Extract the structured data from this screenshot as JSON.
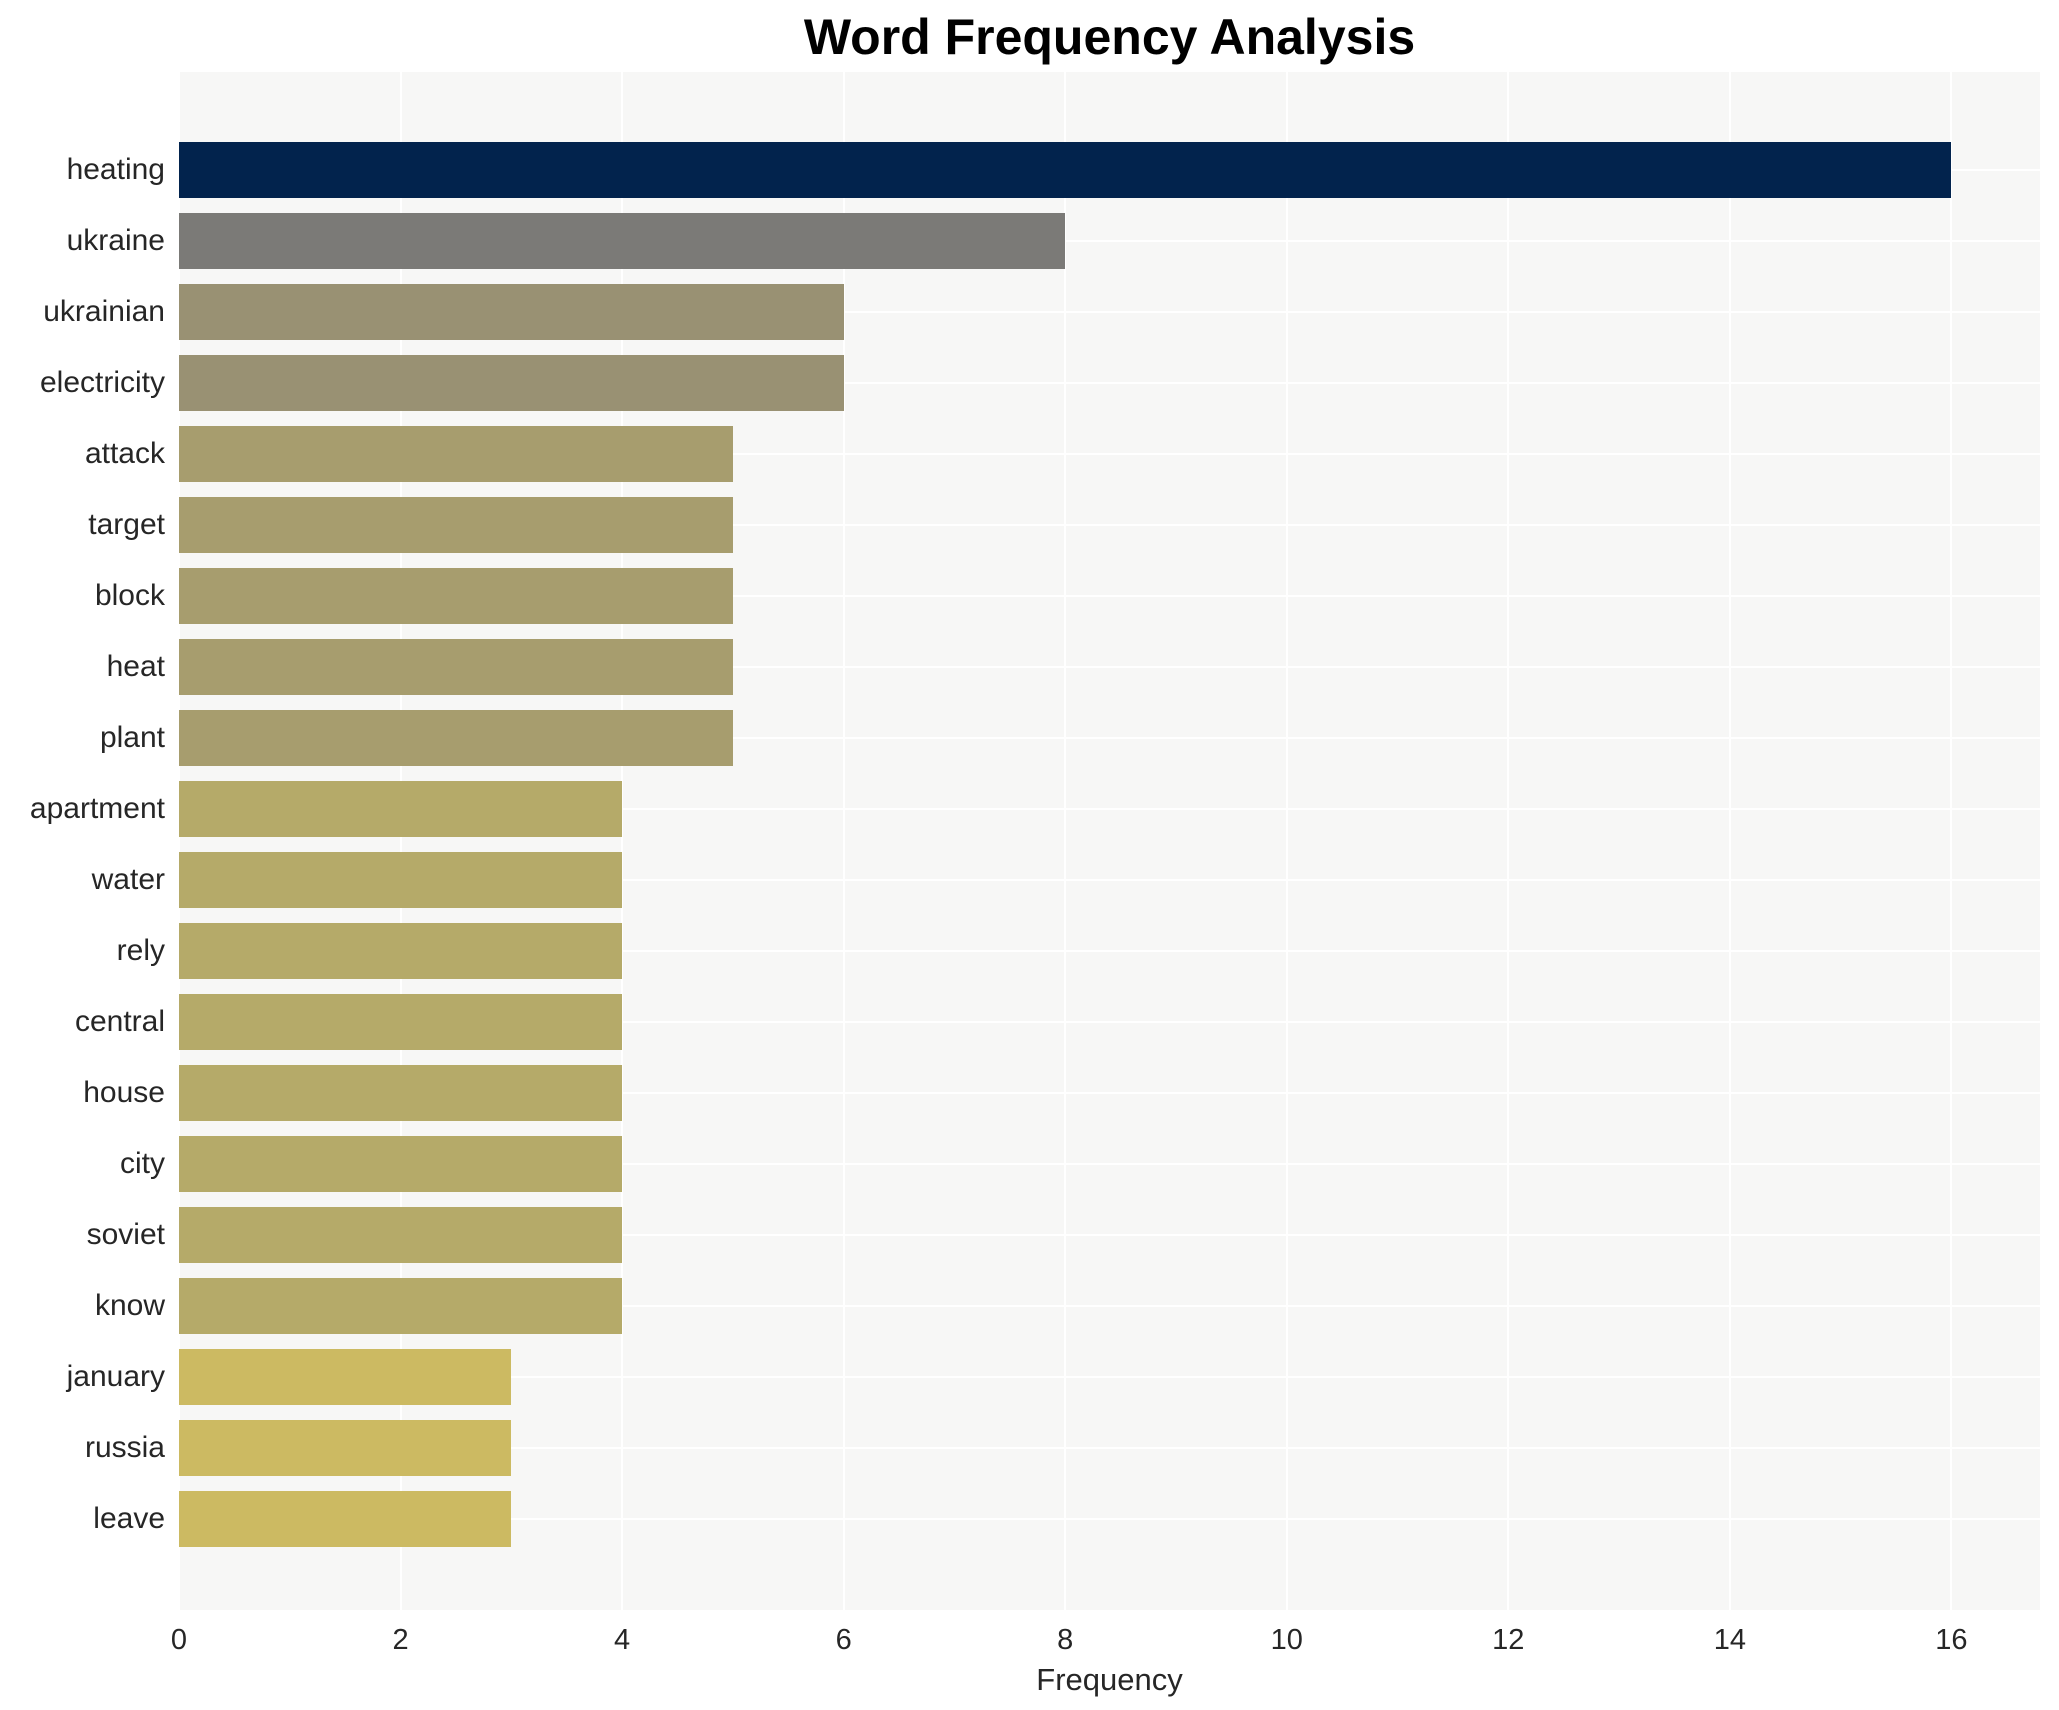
{
  "title": "Word Frequency Analysis",
  "xlabel": "Frequency",
  "chart_data": {
    "type": "bar",
    "orientation": "horizontal",
    "title": "Word Frequency Analysis",
    "xlabel": "Frequency",
    "ylabel": "",
    "categories": [
      "heating",
      "ukraine",
      "ukrainian",
      "electricity",
      "attack",
      "target",
      "block",
      "heat",
      "plant",
      "apartment",
      "water",
      "rely",
      "central",
      "house",
      "city",
      "soviet",
      "know",
      "january",
      "russia",
      "leave"
    ],
    "values": [
      16,
      8,
      6,
      6,
      5,
      5,
      5,
      5,
      5,
      4,
      4,
      4,
      4,
      4,
      4,
      4,
      4,
      3,
      3,
      3
    ],
    "bar_colors": [
      "#02234d",
      "#7b7a77",
      "#999173",
      "#999173",
      "#a79d6e",
      "#a79d6e",
      "#a79d6e",
      "#a79d6e",
      "#a79d6e",
      "#b5aa69",
      "#b5aa69",
      "#b5aa69",
      "#b5aa69",
      "#b5aa69",
      "#b5aa69",
      "#b5aa69",
      "#b5aa69",
      "#ccba62",
      "#ccba62",
      "#ccba62"
    ],
    "x_ticks": [
      0,
      2,
      4,
      6,
      8,
      10,
      12,
      14,
      16
    ],
    "xlim": [
      0,
      16.8
    ],
    "grid": true,
    "grid_color": "#ffffff",
    "plot_background": "#f7f7f6",
    "legend": "none"
  }
}
